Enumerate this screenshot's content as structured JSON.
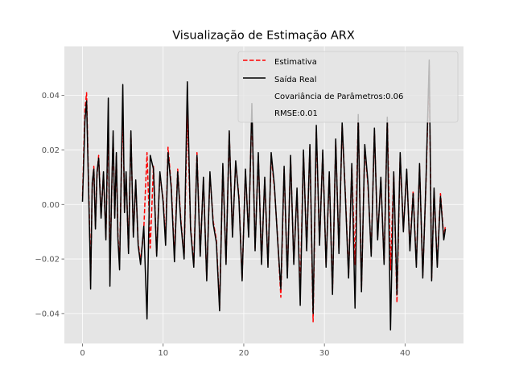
{
  "chart_data": {
    "type": "line",
    "title": "Visualização de Estimação ARX",
    "xlabel": "",
    "ylabel": "",
    "xlim": [
      -2.25,
      47.25
    ],
    "ylim": [
      -0.051,
      0.058
    ],
    "x_ticks": [
      0,
      10,
      20,
      30,
      40
    ],
    "y_ticks": [
      -0.04,
      -0.02,
      0.0,
      0.02,
      0.04
    ],
    "x_tick_labels": [
      "0",
      "10",
      "20",
      "30",
      "40"
    ],
    "y_tick_labels": [
      "−0.04",
      "−0.02",
      "0.00",
      "0.02",
      "0.04"
    ],
    "grid": true,
    "legend_position": "top-right",
    "legend": {
      "entries": [
        "Estimativa",
        "Saída Real"
      ],
      "notes": [
        "Covariância de Parâmetros:0.06",
        "RMSE:0.01"
      ]
    },
    "series": [
      {
        "name": "Estimativa",
        "color": "#ff0000",
        "style": "dashed",
        "x": [
          0,
          0.3,
          0.5,
          0.7,
          0.9,
          1.0,
          1.2,
          1.4,
          1.6,
          1.8,
          2.0,
          2.3,
          2.6,
          2.9,
          3.2,
          3.4,
          3.6,
          3.8,
          4.0,
          4.2,
          4.4,
          4.6,
          4.8,
          5.0,
          5.2,
          5.4,
          5.7,
          6.0,
          6.3,
          6.6,
          6.9,
          7.2,
          7.6,
          8.0,
          8.4,
          8.8,
          9.2,
          9.6,
          10.0,
          10.3,
          10.6,
          11.0,
          11.4,
          11.8,
          12.2,
          12.6,
          13.0,
          13.4,
          13.8,
          14.2,
          14.6,
          15.0,
          15.4,
          15.8,
          16.2,
          16.6,
          17.0,
          17.4,
          17.8,
          18.2,
          18.6,
          19.0,
          19.4,
          19.8,
          20.2,
          20.6,
          21.0,
          21.4,
          21.8,
          22.2,
          22.6,
          23.0,
          23.4,
          23.8,
          24.2,
          24.6,
          25.0,
          25.4,
          25.8,
          26.2,
          26.6,
          27.0,
          27.4,
          27.8,
          28.2,
          28.6,
          29.0,
          29.4,
          29.8,
          30.2,
          30.6,
          31.0,
          31.4,
          31.8,
          32.2,
          32.6,
          33.0,
          33.4,
          33.8,
          34.2,
          34.6,
          35.0,
          35.4,
          35.8,
          36.2,
          36.6,
          37.0,
          37.4,
          37.8,
          38.2,
          38.6,
          39.0,
          39.4,
          39.8,
          40.2,
          40.6,
          41.0,
          41.4,
          41.8,
          42.2,
          42.6,
          43.0,
          43.3,
          43.6,
          44.0,
          44.4,
          44.8,
          45.0
        ],
        "y": [
          0.003,
          0.035,
          0.041,
          0.014,
          -0.012,
          -0.028,
          0.006,
          0.014,
          -0.008,
          0.011,
          0.018,
          -0.004,
          0.011,
          -0.012,
          0.031,
          -0.024,
          0.002,
          0.025,
          -0.004,
          0.018,
          -0.012,
          -0.021,
          0.009,
          0.036,
          -0.002,
          0.011,
          -0.017,
          0.026,
          -0.011,
          0.008,
          -0.014,
          -0.021,
          -0.009,
          0.019,
          -0.016,
          0.014,
          -0.018,
          0.011,
          0.002,
          -0.013,
          0.021,
          0.007,
          -0.019,
          0.013,
          -0.006,
          -0.019,
          0.034,
          -0.008,
          -0.022,
          0.019,
          -0.018,
          0.009,
          -0.027,
          0.011,
          -0.006,
          -0.013,
          -0.038,
          0.014,
          -0.021,
          0.026,
          -0.011,
          0.015,
          0.003,
          -0.027,
          0.012,
          -0.011,
          0.035,
          -0.016,
          0.018,
          -0.021,
          0.009,
          -0.022,
          0.018,
          0.006,
          -0.012,
          -0.034,
          0.013,
          -0.026,
          0.017,
          -0.021,
          0.005,
          -0.032,
          0.019,
          -0.016,
          0.021,
          -0.043,
          0.027,
          -0.014,
          0.019,
          -0.022,
          0.011,
          -0.032,
          0.023,
          -0.017,
          0.029,
          0.004,
          -0.026,
          0.014,
          -0.022,
          0.032,
          -0.031,
          0.021,
          0.007,
          -0.018,
          0.027,
          -0.012,
          0.009,
          -0.021,
          0.031,
          -0.024,
          0.011,
          -0.036,
          0.018,
          -0.009,
          0.012,
          -0.016,
          0.005,
          -0.022,
          0.014,
          -0.026,
          0.008,
          0.051,
          -0.027,
          0.005,
          -0.022,
          0.004,
          -0.012,
          -0.008
        ]
      },
      {
        "name": "Saída Real",
        "color": "#000000",
        "style": "solid",
        "x": [
          0,
          0.3,
          0.5,
          0.7,
          0.9,
          1.0,
          1.2,
          1.4,
          1.6,
          1.8,
          2.0,
          2.3,
          2.6,
          2.9,
          3.2,
          3.4,
          3.6,
          3.8,
          4.0,
          4.2,
          4.4,
          4.6,
          4.8,
          5.0,
          5.2,
          5.4,
          5.7,
          6.0,
          6.3,
          6.6,
          6.9,
          7.2,
          7.6,
          8.0,
          8.4,
          8.8,
          9.2,
          9.6,
          10.0,
          10.3,
          10.6,
          11.0,
          11.4,
          11.8,
          12.2,
          12.6,
          13.0,
          13.4,
          13.8,
          14.2,
          14.6,
          15.0,
          15.4,
          15.8,
          16.2,
          16.6,
          17.0,
          17.4,
          17.8,
          18.2,
          18.6,
          19.0,
          19.4,
          19.8,
          20.2,
          20.6,
          21.0,
          21.4,
          21.8,
          22.2,
          22.6,
          23.0,
          23.4,
          23.8,
          24.2,
          24.6,
          25.0,
          25.4,
          25.8,
          26.2,
          26.6,
          27.0,
          27.4,
          27.8,
          28.2,
          28.6,
          29.0,
          29.4,
          29.8,
          30.2,
          30.6,
          31.0,
          31.4,
          31.8,
          32.2,
          32.6,
          33.0,
          33.4,
          33.8,
          34.2,
          34.6,
          35.0,
          35.4,
          35.8,
          36.2,
          36.6,
          37.0,
          37.4,
          37.8,
          38.2,
          38.6,
          39.0,
          39.4,
          39.8,
          40.2,
          40.6,
          41.0,
          41.4,
          41.8,
          42.2,
          42.6,
          43.0,
          43.3,
          43.6,
          44.0,
          44.4,
          44.8,
          45.0
        ],
        "y": [
          0.001,
          0.031,
          0.038,
          0.012,
          -0.014,
          -0.031,
          0.008,
          0.013,
          -0.009,
          0.012,
          0.017,
          -0.005,
          0.012,
          -0.013,
          0.039,
          -0.03,
          0.003,
          0.027,
          -0.005,
          0.019,
          -0.013,
          -0.024,
          0.01,
          0.044,
          -0.003,
          0.012,
          -0.018,
          0.027,
          -0.012,
          0.009,
          -0.015,
          -0.022,
          -0.008,
          -0.042,
          0.018,
          0.013,
          -0.019,
          0.012,
          0.001,
          -0.015,
          0.019,
          0.006,
          -0.021,
          0.012,
          -0.007,
          -0.02,
          0.045,
          -0.009,
          -0.023,
          0.018,
          -0.019,
          0.01,
          -0.028,
          0.012,
          -0.007,
          -0.014,
          -0.039,
          0.015,
          -0.022,
          0.027,
          -0.012,
          0.016,
          0.002,
          -0.028,
          0.013,
          -0.012,
          0.037,
          -0.017,
          0.019,
          -0.022,
          0.01,
          -0.023,
          0.019,
          0.007,
          -0.013,
          -0.031,
          0.014,
          -0.027,
          0.018,
          -0.022,
          0.006,
          -0.037,
          0.02,
          -0.017,
          0.022,
          -0.04,
          0.029,
          -0.015,
          0.02,
          -0.023,
          0.012,
          -0.033,
          0.024,
          -0.018,
          0.03,
          0.003,
          -0.027,
          0.015,
          -0.038,
          0.033,
          -0.032,
          0.022,
          0.008,
          -0.019,
          0.028,
          -0.013,
          0.01,
          -0.022,
          0.032,
          -0.046,
          0.012,
          -0.033,
          0.019,
          -0.01,
          0.013,
          -0.017,
          0.004,
          -0.023,
          0.015,
          -0.027,
          0.009,
          0.053,
          -0.028,
          0.006,
          -0.023,
          0.003,
          -0.013,
          -0.009
        ]
      }
    ]
  }
}
